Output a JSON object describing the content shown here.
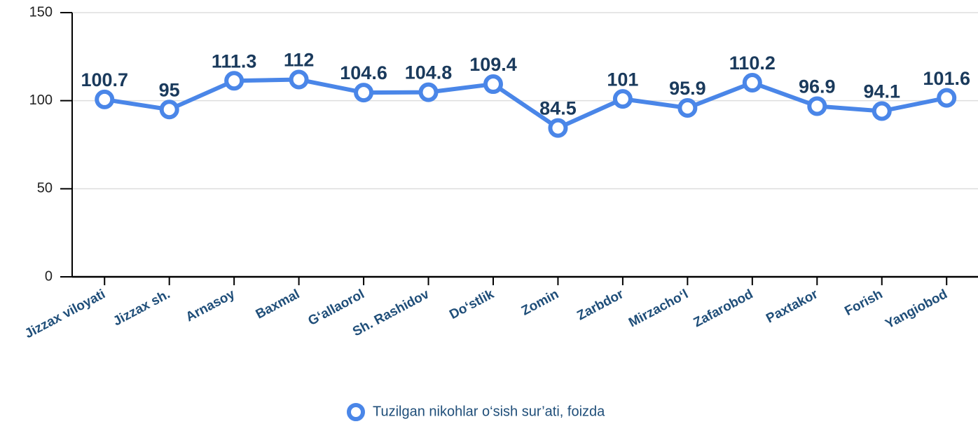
{
  "chart_data": {
    "type": "line",
    "categories": [
      "Jizzax viloyati",
      "Jizzax sh.",
      "Arnasoy",
      "Baxmal",
      "G‘allaorol",
      "Sh. Rashidov",
      "Do‘stlik",
      "Zomin",
      "Zarbdor",
      "Mirzacho‘l",
      "Zafarobod",
      "Paxtakor",
      "Forish",
      "Yangiobod"
    ],
    "series": [
      {
        "name": "Tuzilgan nikohlar o‘sish sur’ati, foizda",
        "color": "#4a86e8",
        "values": [
          100.7,
          95,
          111.3,
          112,
          104.6,
          104.8,
          109.4,
          84.5,
          101,
          95.9,
          110.2,
          96.9,
          94.1,
          101.6
        ]
      }
    ],
    "ylim": [
      0,
      150
    ],
    "yticks": [
      0,
      50,
      100,
      150
    ],
    "grid": true,
    "legend": "bottom"
  }
}
